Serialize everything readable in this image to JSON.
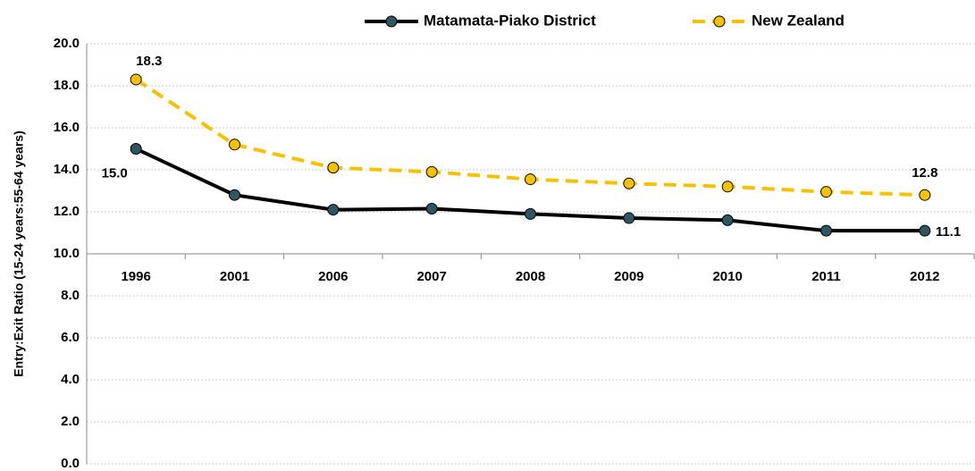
{
  "chart_data": {
    "type": "line",
    "y_label": "Entry:Exit  Ratio (15-24 years:55-64 years)",
    "categories": [
      "1996",
      "2001",
      "2006",
      "2007",
      "2008",
      "2009",
      "2010",
      "2011",
      "2012"
    ],
    "series": [
      {
        "name": "Matamata-Piako District",
        "color": "#000000",
        "marker_color": "#2e5560",
        "dashed": false,
        "values": [
          15.0,
          12.8,
          12.1,
          12.15,
          11.9,
          11.7,
          11.6,
          11.1,
          11.1
        ],
        "value_labels": [
          "15.0",
          null,
          null,
          null,
          null,
          null,
          null,
          null,
          "11.1"
        ]
      },
      {
        "name": "New Zealand",
        "color": "#f5c200",
        "marker_color": "#f5c200",
        "dashed": true,
        "values": [
          18.3,
          15.2,
          14.1,
          13.9,
          13.55,
          13.35,
          13.2,
          12.95,
          12.8
        ],
        "value_labels": [
          "18.3",
          null,
          null,
          null,
          null,
          null,
          null,
          null,
          "12.8"
        ]
      }
    ],
    "ylim": [
      0,
      20
    ],
    "yticks": [
      {
        "value": 0,
        "label": "0.0"
      },
      {
        "value": 2,
        "label": "2.0"
      },
      {
        "value": 4,
        "label": "4.0"
      },
      {
        "value": 6,
        "label": "6.0"
      },
      {
        "value": 8,
        "label": "8.0"
      },
      {
        "value": 10,
        "label": "10.0"
      },
      {
        "value": 12,
        "label": "12.0"
      },
      {
        "value": 14,
        "label": "14.0"
      },
      {
        "value": 16,
        "label": "16.0"
      },
      {
        "value": 18,
        "label": "18.0"
      },
      {
        "value": 20,
        "label": "20.0"
      }
    ],
    "x_axis_crosses": 10,
    "grid": true,
    "legend": "top"
  }
}
